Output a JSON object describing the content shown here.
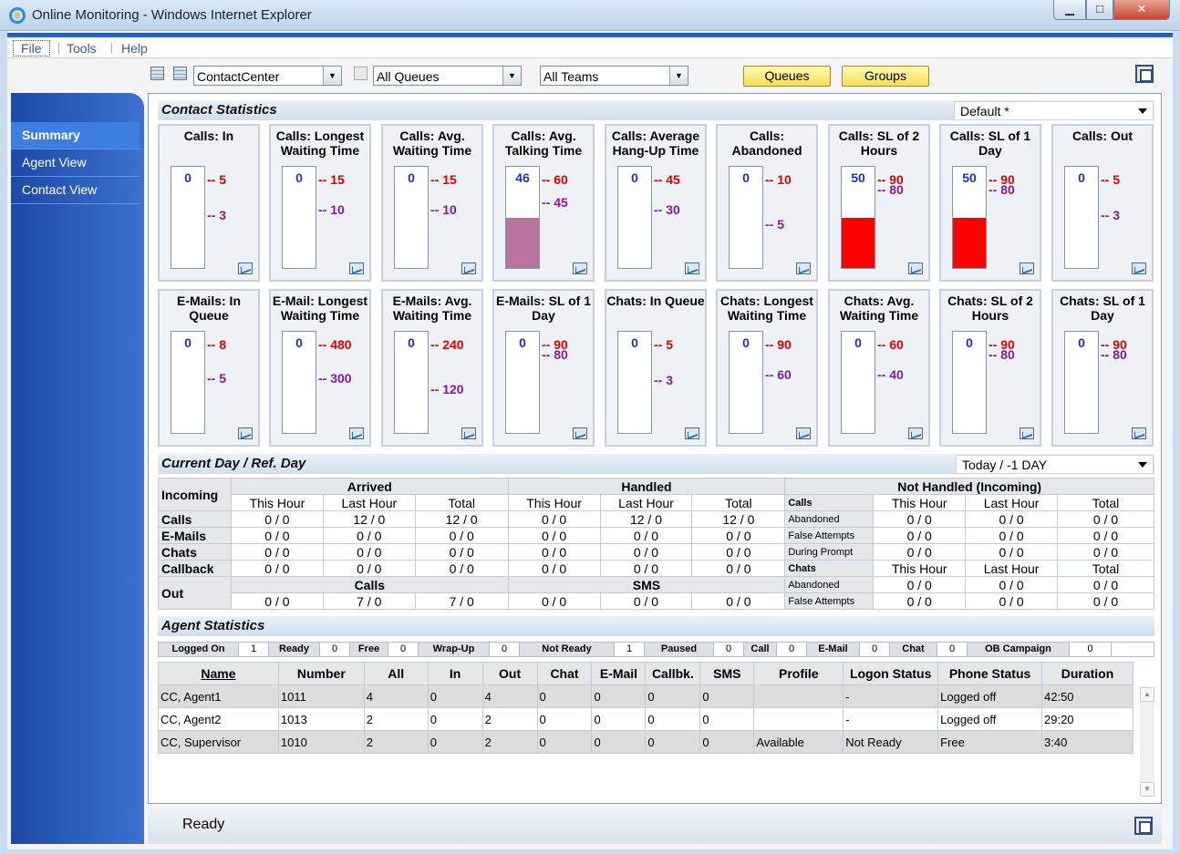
{
  "window": {
    "title": "Online Monitoring - Windows Internet Explorer",
    "min": "▁",
    "max": "□",
    "close": "✕"
  },
  "menu": {
    "file": "File",
    "tools": "Tools",
    "help": "Help"
  },
  "toolbar": {
    "site": "ContactCenter",
    "queues_filter": "All Queues",
    "teams_filter": "All Teams",
    "queues_button": "Queues",
    "groups_button": "Groups"
  },
  "sidebar": {
    "items": [
      {
        "label": "Summary"
      },
      {
        "label": "Agent View"
      },
      {
        "label": "Contact View"
      }
    ]
  },
  "contact_statistics": {
    "title": "Contact Statistics",
    "profile": "Default *",
    "gauges": [
      {
        "title": "Calls: In",
        "value": "0",
        "level": 0,
        "fill": "",
        "t1": "5",
        "t2": "3"
      },
      {
        "title": "Calls: Longest Waiting Time",
        "value": "0",
        "level": 0,
        "fill": "",
        "t1": "15",
        "t2": "10"
      },
      {
        "title": "Calls: Avg. Waiting Time",
        "value": "0",
        "level": 0,
        "fill": "",
        "t1": "15",
        "t2": "10"
      },
      {
        "title": "Calls: Avg. Talking Time",
        "value": "46",
        "level": 0.5,
        "fill": "#b8739f",
        "t1": "60",
        "t2": "45"
      },
      {
        "title": "Calls: Average Hang-Up Time",
        "value": "0",
        "level": 0,
        "fill": "",
        "t1": "45",
        "t2": "30"
      },
      {
        "title": "Calls: Abandoned",
        "value": "0",
        "level": 0,
        "fill": "",
        "t1": "10",
        "t2": "5"
      },
      {
        "title": "Calls: SL of 2 Hours",
        "value": "50",
        "level": 0.5,
        "fill": "#ff0000",
        "t1": "90",
        "t2": "80"
      },
      {
        "title": "Calls: SL of 1 Day",
        "value": "50",
        "level": 0.5,
        "fill": "#ff0000",
        "t1": "90",
        "t2": "80"
      },
      {
        "title": "Calls: Out",
        "value": "0",
        "level": 0,
        "fill": "",
        "t1": "5",
        "t2": "3"
      },
      {
        "title": "E-Mails: In Queue",
        "value": "0",
        "level": 0,
        "fill": "",
        "t1": "8",
        "t2": "5"
      },
      {
        "title": "E-Mail: Longest Waiting Time",
        "value": "0",
        "level": 0,
        "fill": "",
        "t1": "480",
        "t2": "300"
      },
      {
        "title": "E-Mails: Avg. Waiting Time",
        "value": "0",
        "level": 0,
        "fill": "",
        "t1": "240",
        "t2": "120"
      },
      {
        "title": "E-Mails: SL of 1 Day",
        "value": "0",
        "level": 0,
        "fill": "",
        "t1": "90",
        "t2": "80"
      },
      {
        "title": "Chats: In Queue",
        "value": "0",
        "level": 0,
        "fill": "",
        "t1": "5",
        "t2": "3"
      },
      {
        "title": "Chats: Longest Waiting Time",
        "value": "0",
        "level": 0,
        "fill": "",
        "t1": "90",
        "t2": "60"
      },
      {
        "title": "Chats: Avg. Waiting Time",
        "value": "0",
        "level": 0,
        "fill": "",
        "t1": "60",
        "t2": "40"
      },
      {
        "title": "Chats: SL of 2 Hours",
        "value": "0",
        "level": 0,
        "fill": "",
        "t1": "90",
        "t2": "80"
      },
      {
        "title": "Chats: SL of 1 Day",
        "value": "0",
        "level": 0,
        "fill": "",
        "t1": "90",
        "t2": "80"
      }
    ]
  },
  "current_day": {
    "title": "Current Day / Ref. Day",
    "range": "Today / -1 DAY",
    "incoming": "Incoming",
    "arrived": "Arrived",
    "handled": "Handled",
    "not_handled": "Not Handled (Incoming)",
    "this_hour": "This Hour",
    "last_hour": "Last Hour",
    "total": "Total",
    "calls": "Calls",
    "emails": "E-Mails",
    "chats": "Chats",
    "callback": "Callback",
    "out": "Out",
    "sms": "SMS",
    "abandoned": "Abandoned",
    "false_attempts": "False Attempts",
    "during_prompt": "During Prompt",
    "zero": "0 / 0",
    "calls_last": "12 / 0",
    "calls_total": "12 / 0",
    "calls_handled_last": "12 / 0",
    "calls_handled_total": "12 / 0",
    "out_calls_last": "7 / 0",
    "out_calls_total": "7 / 0"
  },
  "agent_statistics": {
    "title": "Agent Statistics",
    "summary": [
      {
        "label": "Logged On",
        "value": "1"
      },
      {
        "label": "Ready",
        "value": "0"
      },
      {
        "label": "Free",
        "value": "0"
      },
      {
        "label": "Wrap-Up",
        "value": "0"
      },
      {
        "label": "Not Ready",
        "value": "1"
      },
      {
        "label": "Paused",
        "value": "0"
      },
      {
        "label": "Call",
        "value": "0"
      },
      {
        "label": "E-Mail",
        "value": "0"
      },
      {
        "label": "Chat",
        "value": "0"
      },
      {
        "label": "OB Campaign",
        "value": "0"
      }
    ],
    "columns": [
      "Name",
      "Number",
      "All",
      "In",
      "Out",
      "Chat",
      "E-Mail",
      "Callbk.",
      "SMS",
      "Profile",
      "Logon Status",
      "Phone Status",
      "Duration"
    ],
    "rows": [
      [
        "CC, Agent1",
        "1011",
        "4",
        "0",
        "4",
        "0",
        "0",
        "0",
        "0",
        "",
        "-",
        "Logged off",
        "42:50"
      ],
      [
        "CC, Agent2",
        "1013",
        "2",
        "0",
        "2",
        "0",
        "0",
        "0",
        "0",
        "",
        "-",
        "Logged off",
        "29:20"
      ],
      [
        "CC, Supervisor",
        "1010",
        "2",
        "0",
        "2",
        "0",
        "0",
        "0",
        "0",
        "Available",
        "Not Ready",
        "Free",
        "3:40"
      ]
    ]
  },
  "status": {
    "text": "Ready"
  },
  "scroll": {
    "up": "▲",
    "down": "▼"
  }
}
